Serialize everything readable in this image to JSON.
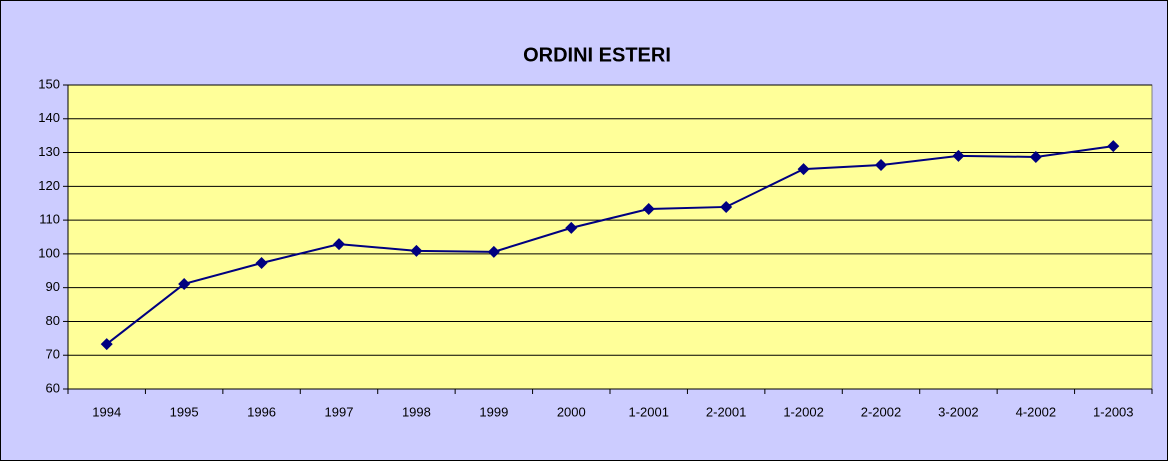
{
  "chart_data": {
    "type": "line",
    "title": "ORDINI ESTERI",
    "categories": [
      "1994",
      "1995",
      "1996",
      "1997",
      "1998",
      "1999",
      "2000",
      "1-2001",
      "2-2001",
      "1-2002",
      "2-2002",
      "3-2002",
      "4-2002",
      "1-2003"
    ],
    "series": [
      {
        "name": "ORDINI ESTERI",
        "color": "#000080",
        "values": [
          73.3,
          91.1,
          97.3,
          102.9,
          100.9,
          100.6,
          107.7,
          113.3,
          113.9,
          125.1,
          126.3,
          129,
          128.7,
          131.9
        ]
      }
    ],
    "ylim": [
      60,
      150
    ],
    "yticks": [
      60,
      70,
      80,
      90,
      100,
      110,
      120,
      130,
      140,
      150
    ],
    "grid": true,
    "background": "#ccccff",
    "plot_background": "#ffff99"
  }
}
